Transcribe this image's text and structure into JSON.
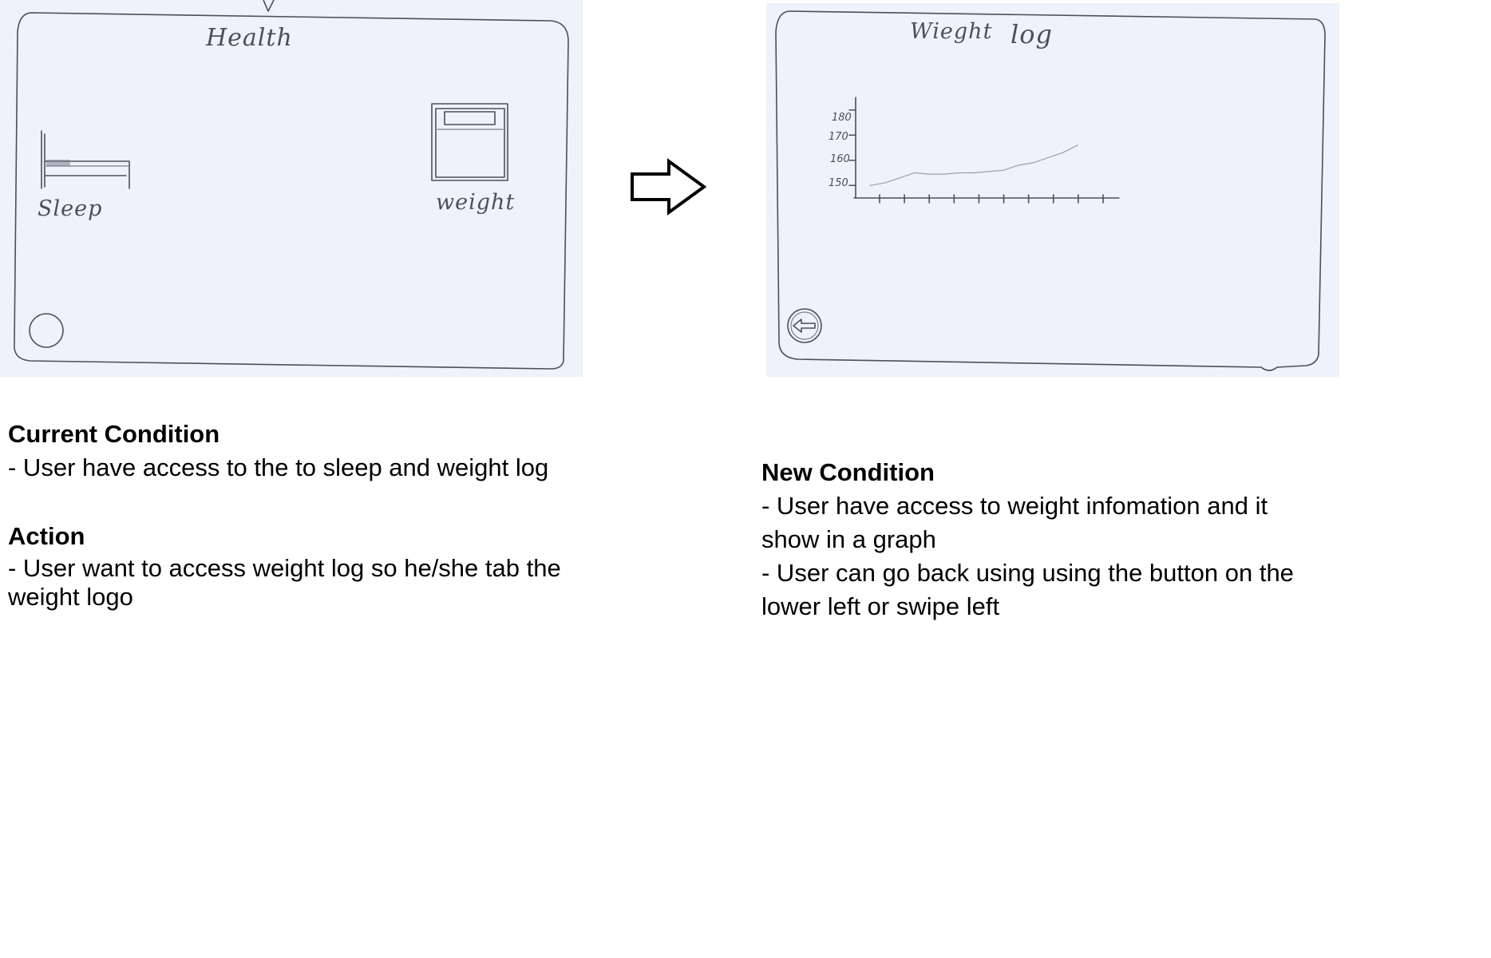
{
  "current_screen": {
    "title": "Health",
    "sleep_label": "Sleep",
    "weight_label": "weight"
  },
  "new_screen": {
    "title_word1": "Wieght",
    "title_word2": "log",
    "chart_data": {
      "type": "line",
      "title": "",
      "xlabel": "",
      "ylabel": "",
      "yticks": [
        "180",
        "170",
        "160",
        "150"
      ],
      "ylim": [
        145,
        185
      ],
      "x": [
        0,
        1,
        2,
        3,
        4,
        5,
        6,
        7,
        8,
        9,
        10,
        11,
        12,
        13,
        14
      ],
      "series": [
        {
          "values": [
            150,
            151,
            153,
            155,
            154.5,
            154.5,
            155,
            155,
            155.5,
            156,
            158,
            159,
            161,
            163,
            166
          ]
        }
      ],
      "x_tick_count": 10,
      "grid": false
    }
  },
  "notes": {
    "current_heading": "Current Condition",
    "current_text": "- User have access to the to sleep and weight log",
    "action_heading": "Action",
    "action_line1": "- User want to access  weight  log so he/she tab the",
    "action_line2": "weight logo",
    "new_heading": "New Condition",
    "new_line1": "- User have access to weight infomation and it",
    "new_line2": "show in a graph",
    "new_line3": "- User can go back using using the button on the",
    "new_line4": "lower left or swipe left"
  },
  "colors": {
    "pencil": "#4a4f5a",
    "paper": "#eef2fa"
  },
  "icons": [
    "bed-icon",
    "scale-icon",
    "home-button-icon",
    "back-arrow-icon",
    "flow-arrow-icon"
  ]
}
